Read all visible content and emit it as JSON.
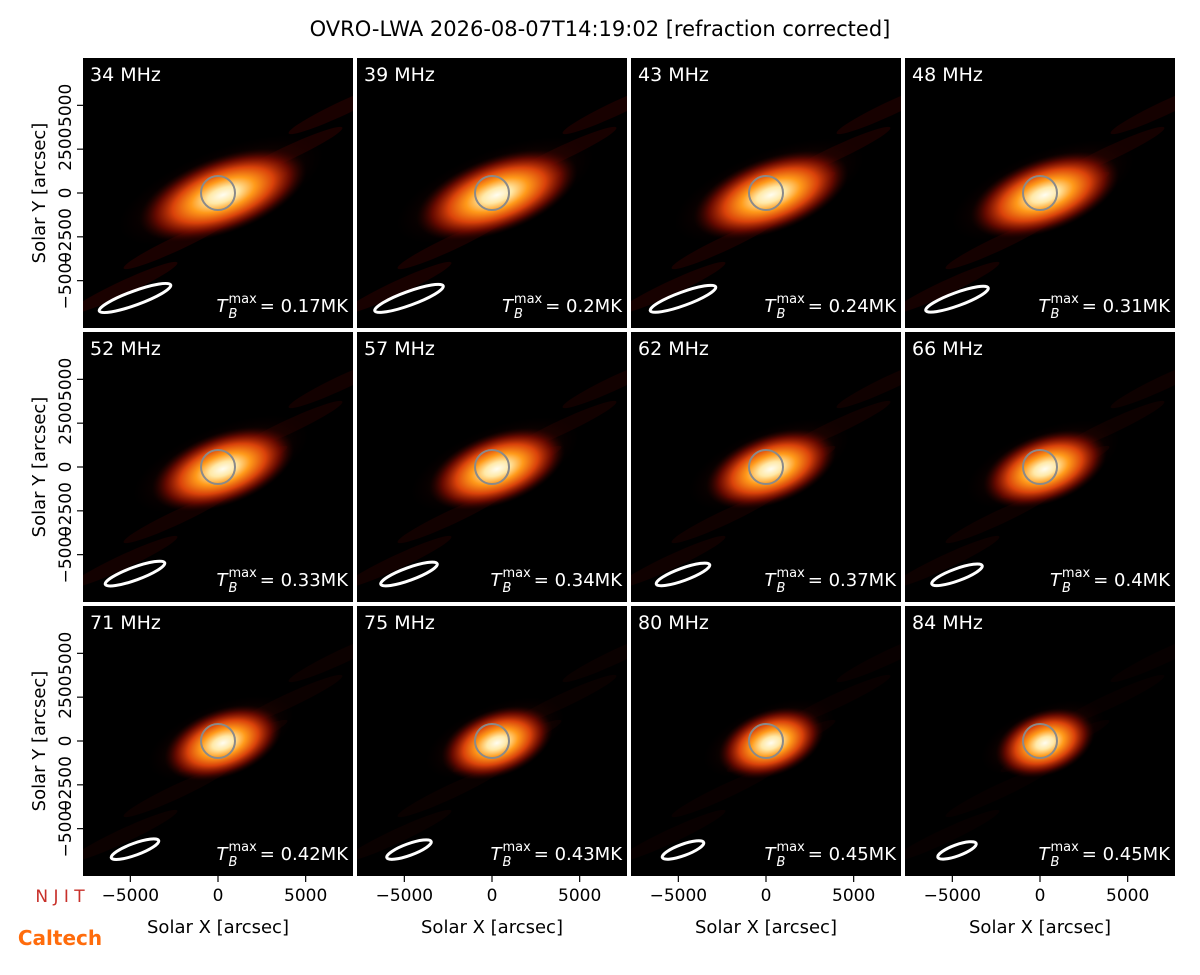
{
  "title": "OVRO-LWA 2026-08-07T14:19:02 [refraction corrected]",
  "logos": [
    "N J I T",
    "Caltech"
  ],
  "chart_data": [
    {
      "type": "image",
      "label": "34 MHz",
      "annotation_symbol": "T",
      "annotation_sub": "B",
      "annotation_sup": "max",
      "annotation": "= 0.17MK",
      "xlim": [
        -7700,
        7700
      ],
      "ylim": [
        -7700,
        7700
      ],
      "ylabel": "Solar Y [arcsec]",
      "yticks": [
        {
          "value": -5000,
          "label": "−5000"
        },
        {
          "value": -2500,
          "label": "−2500"
        },
        0,
        2500,
        5000
      ]
    },
    {
      "type": "image",
      "label": "39 MHz",
      "annotation_symbol": "T",
      "annotation_sub": "B",
      "annotation_sup": "max",
      "annotation": "= 0.2MK",
      "xlim": [
        -7700,
        7700
      ],
      "ylim": [
        -7700,
        7700
      ]
    },
    {
      "type": "image",
      "label": "43 MHz",
      "annotation_symbol": "T",
      "annotation_sub": "B",
      "annotation_sup": "max",
      "annotation": "= 0.24MK",
      "xlim": [
        -7700,
        7700
      ],
      "ylim": [
        -7700,
        7700
      ]
    },
    {
      "type": "image",
      "label": "48 MHz",
      "annotation_symbol": "T",
      "annotation_sub": "B",
      "annotation_sup": "max",
      "annotation": "= 0.31MK",
      "xlim": [
        -7700,
        7700
      ],
      "ylim": [
        -7700,
        7700
      ]
    },
    {
      "type": "image",
      "label": "52 MHz",
      "annotation_symbol": "T",
      "annotation_sub": "B",
      "annotation_sup": "max",
      "annotation": "= 0.33MK",
      "xlim": [
        -7700,
        7700
      ],
      "ylim": [
        -7700,
        7700
      ],
      "ylabel": "Solar Y [arcsec]",
      "yticks": [
        {
          "value": -5000,
          "label": "−5000"
        },
        {
          "value": -2500,
          "label": "−2500"
        },
        0,
        2500,
        5000
      ]
    },
    {
      "type": "image",
      "label": "57 MHz",
      "annotation_symbol": "T",
      "annotation_sub": "B",
      "annotation_sup": "max",
      "annotation": "= 0.34MK",
      "xlim": [
        -7700,
        7700
      ],
      "ylim": [
        -7700,
        7700
      ]
    },
    {
      "type": "image",
      "label": "62 MHz",
      "annotation_symbol": "T",
      "annotation_sub": "B",
      "annotation_sup": "max",
      "annotation": "= 0.37MK",
      "xlim": [
        -7700,
        7700
      ],
      "ylim": [
        -7700,
        7700
      ]
    },
    {
      "type": "image",
      "label": "66 MHz",
      "annotation_symbol": "T",
      "annotation_sub": "B",
      "annotation_sup": "max",
      "annotation": "= 0.4MK",
      "xlim": [
        -7700,
        7700
      ],
      "ylim": [
        -7700,
        7700
      ]
    },
    {
      "type": "image",
      "label": "71 MHz",
      "annotation_symbol": "T",
      "annotation_sub": "B",
      "annotation_sup": "max",
      "annotation": "= 0.42MK",
      "xlim": [
        -7700,
        7700
      ],
      "ylim": [
        -7700,
        7700
      ],
      "ylabel": "Solar Y [arcsec]",
      "yticks": [
        {
          "value": -5000,
          "label": "−5000"
        },
        {
          "value": -2500,
          "label": "−2500"
        },
        0,
        2500,
        5000
      ],
      "xlabel": "Solar X [arcsec]",
      "xticks": [
        {
          "value": -5000,
          "label": "−5000"
        },
        0,
        5000
      ]
    },
    {
      "type": "image",
      "label": "75 MHz",
      "annotation_symbol": "T",
      "annotation_sub": "B",
      "annotation_sup": "max",
      "annotation": "= 0.43MK",
      "xlim": [
        -7700,
        7700
      ],
      "ylim": [
        -7700,
        7700
      ],
      "xlabel": "Solar X [arcsec]",
      "xticks": [
        {
          "value": -5000,
          "label": "−5000"
        },
        0,
        5000
      ]
    },
    {
      "type": "image",
      "label": "80 MHz",
      "annotation_symbol": "T",
      "annotation_sub": "B",
      "annotation_sup": "max",
      "annotation": "= 0.45MK",
      "xlim": [
        -7700,
        7700
      ],
      "ylim": [
        -7700,
        7700
      ],
      "xlabel": "Solar X [arcsec]",
      "xticks": [
        {
          "value": -5000,
          "label": "−5000"
        },
        0,
        5000
      ]
    },
    {
      "type": "image",
      "label": "84 MHz",
      "annotation_symbol": "T",
      "annotation_sub": "B",
      "annotation_sup": "max",
      "annotation": "= 0.45MK",
      "xlim": [
        -7700,
        7700
      ],
      "ylim": [
        -7700,
        7700
      ],
      "xlabel": "Solar X [arcsec]",
      "xticks": [
        {
          "value": -5000,
          "label": "−5000"
        },
        0,
        5000
      ]
    }
  ]
}
